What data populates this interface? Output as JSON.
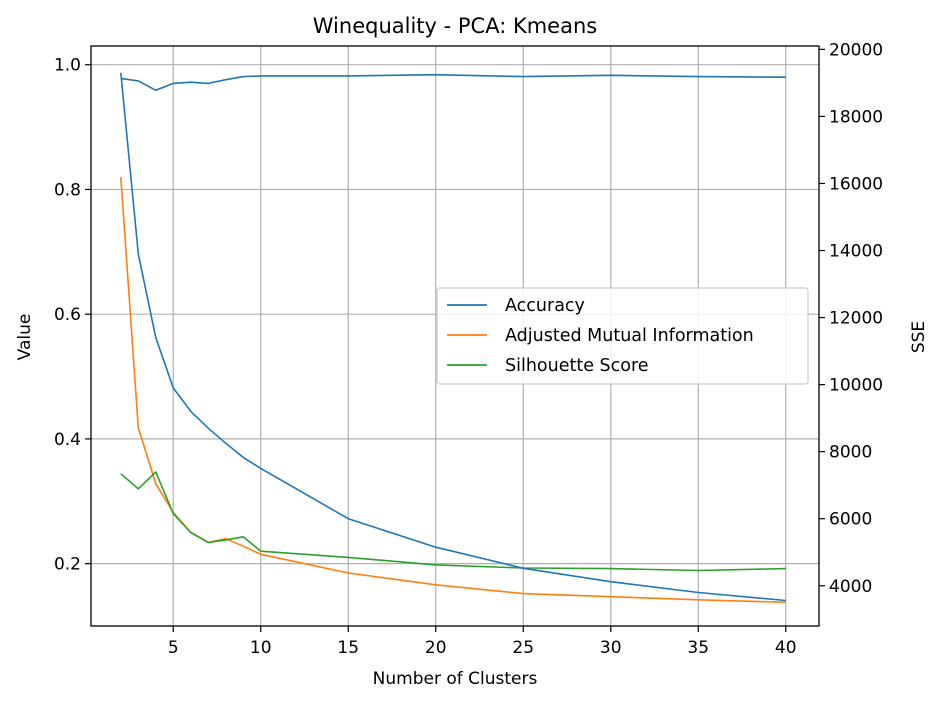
{
  "chart_data": {
    "type": "line",
    "title": "Winequality - PCA: Kmeans",
    "xlabel": "Number of Clusters",
    "ylabel_left": "Value",
    "ylabel_right": "SSE",
    "xlim": [
      0.3,
      41.9
    ],
    "ylim_left": [
      0.1,
      1.03
    ],
    "ylim_right": [
      2800,
      20100
    ],
    "xticks": [
      5,
      10,
      15,
      20,
      25,
      30,
      35,
      40
    ],
    "yticks_left": [
      0.2,
      0.4,
      0.6,
      0.8,
      1.0
    ],
    "yticks_left_labels": [
      "0.2",
      "0.4",
      "0.6",
      "0.8",
      "1.0"
    ],
    "yticks_right": [
      4000,
      6000,
      8000,
      10000,
      12000,
      14000,
      16000,
      18000,
      20000
    ],
    "grid": true,
    "legend_position": "center-right",
    "legend": [
      "Accuracy",
      "Adjusted Mutual Information",
      "Silhouette Score"
    ],
    "series": [
      {
        "name": "Accuracy",
        "axis": "left",
        "color": "#1f77b4",
        "x": [
          2,
          3,
          4,
          5,
          6,
          7,
          8,
          9,
          10,
          15,
          20,
          25,
          30,
          35,
          40
        ],
        "values": [
          0.978,
          0.974,
          0.959,
          0.97,
          0.972,
          0.97,
          0.976,
          0.981,
          0.982,
          0.982,
          0.984,
          0.981,
          0.983,
          0.981,
          0.98
        ]
      },
      {
        "name": "Adjusted Mutual Information",
        "axis": "left",
        "color": "#ff7f0e",
        "x": [
          2,
          3,
          4,
          5,
          6,
          7,
          8,
          9,
          10,
          15,
          20,
          25,
          30,
          35,
          40
        ],
        "values": [
          0.82,
          0.418,
          0.328,
          0.282,
          0.25,
          0.234,
          0.24,
          0.228,
          0.215,
          0.185,
          0.166,
          0.152,
          0.147,
          0.142,
          0.138
        ]
      },
      {
        "name": "Silhouette Score",
        "axis": "left",
        "color": "#2ca02c",
        "x": [
          2,
          3,
          4,
          5,
          6,
          7,
          8,
          9,
          10,
          15,
          20,
          25,
          30,
          35,
          40
        ],
        "values": [
          0.344,
          0.32,
          0.347,
          0.28,
          0.25,
          0.234,
          0.238,
          0.243,
          0.22,
          0.21,
          0.198,
          0.193,
          0.192,
          0.189,
          0.192
        ]
      },
      {
        "axis": "right",
        "color": "#1f77b4",
        "x": [
          2,
          3,
          4,
          5,
          6,
          7,
          8,
          9,
          10,
          15,
          20,
          25,
          30,
          35,
          40
        ],
        "values": [
          19300,
          13900,
          11400,
          9900,
          9200,
          8700,
          8250,
          7830,
          7500,
          6000,
          5150,
          4520,
          4120,
          3800,
          3560
        ]
      }
    ]
  }
}
